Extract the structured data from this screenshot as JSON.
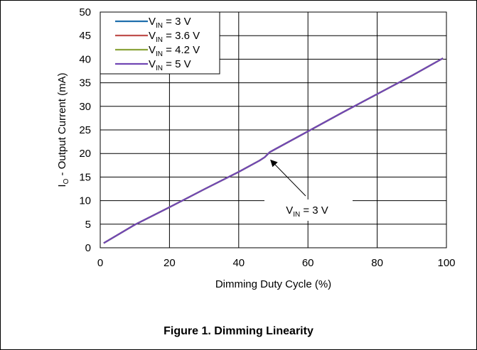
{
  "caption": "Figure 1.  Dimming Linearity",
  "chart_data": {
    "type": "line",
    "xlabel": "Dimming Duty Cycle (%)",
    "ylabel_main": "I",
    "ylabel_sub": "O",
    "ylabel_rest": " - Output Current (mA)",
    "xlim": [
      0,
      100
    ],
    "ylim": [
      0,
      50
    ],
    "xticks": [
      0,
      20,
      40,
      60,
      80,
      100
    ],
    "yticks": [
      0,
      5,
      10,
      15,
      20,
      25,
      30,
      35,
      40,
      45,
      50
    ],
    "grid": true,
    "legend_position": "top-left",
    "series": [
      {
        "name_main": "V",
        "name_sub": "IN",
        "name_rest": " = 3 V",
        "color": "#1f6fad",
        "x": [
          1,
          10,
          20,
          30,
          40,
          46,
          47.5,
          49,
          60,
          70,
          80,
          90,
          99
        ],
        "y": [
          1,
          4.9,
          8.6,
          12.4,
          16.1,
          18.5,
          19.2,
          20.3,
          24.7,
          28.7,
          32.6,
          36.5,
          40.2
        ]
      },
      {
        "name_main": "V",
        "name_sub": "IN",
        "name_rest": " = 3.6 V",
        "color": "#c0504d",
        "x": [
          1,
          10,
          20,
          30,
          40,
          46,
          47.5,
          49,
          60,
          70,
          80,
          90,
          99
        ],
        "y": [
          1,
          4.9,
          8.6,
          12.4,
          16.1,
          18.5,
          19.2,
          20.3,
          24.7,
          28.7,
          32.6,
          36.5,
          40.2
        ]
      },
      {
        "name_main": "V",
        "name_sub": "IN",
        "name_rest": " = 4.2 V",
        "color": "#8aa33a",
        "x": [
          1,
          10,
          20,
          30,
          40,
          46,
          47.5,
          49,
          60,
          70,
          80,
          90,
          99
        ],
        "y": [
          1,
          4.9,
          8.6,
          12.4,
          16.1,
          18.5,
          19.2,
          20.3,
          24.7,
          28.7,
          32.6,
          36.5,
          40.2
        ]
      },
      {
        "name_main": "V",
        "name_sub": "IN",
        "name_rest": " = 5 V",
        "color": "#7147b4",
        "x": [
          1,
          10,
          20,
          30,
          40,
          46,
          47.5,
          49,
          60,
          70,
          80,
          90,
          99
        ],
        "y": [
          1,
          4.9,
          8.6,
          12.4,
          16.1,
          18.5,
          19.2,
          20.3,
          24.7,
          28.7,
          32.6,
          36.5,
          40.2
        ]
      }
    ],
    "annotation": {
      "text_main": "V",
      "text_sub": "IN",
      "text_rest": " = 3 V",
      "points_to_x": 48,
      "points_to_y": 19.5
    }
  }
}
